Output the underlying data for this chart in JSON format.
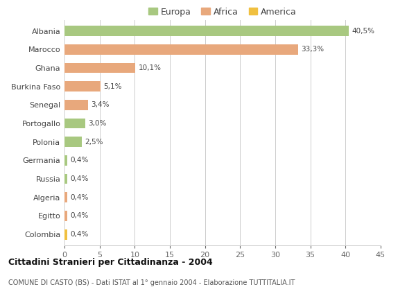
{
  "countries": [
    "Albania",
    "Marocco",
    "Ghana",
    "Burkina Faso",
    "Senegal",
    "Portogallo",
    "Polonia",
    "Germania",
    "Russia",
    "Algeria",
    "Egitto",
    "Colombia"
  ],
  "values": [
    40.5,
    33.3,
    10.1,
    5.1,
    3.4,
    3.0,
    2.5,
    0.4,
    0.4,
    0.4,
    0.4,
    0.4
  ],
  "labels": [
    "40,5%",
    "33,3%",
    "10,1%",
    "5,1%",
    "3,4%",
    "3,0%",
    "2,5%",
    "0,4%",
    "0,4%",
    "0,4%",
    "0,4%",
    "0,4%"
  ],
  "colors": [
    "#a8c880",
    "#e8a87c",
    "#e8a87c",
    "#e8a87c",
    "#e8a87c",
    "#a8c880",
    "#a8c880",
    "#a8c880",
    "#a8c880",
    "#e8a87c",
    "#e8a87c",
    "#f0c040"
  ],
  "legend_labels": [
    "Europa",
    "Africa",
    "America"
  ],
  "legend_colors": [
    "#a8c880",
    "#e8a87c",
    "#f0c040"
  ],
  "title": "Cittadini Stranieri per Cittadinanza - 2004",
  "subtitle": "COMUNE DI CASTO (BS) - Dati ISTAT al 1° gennaio 2004 - Elaborazione TUTTITALIA.IT",
  "xlim": [
    0,
    45
  ],
  "xticks": [
    0,
    5,
    10,
    15,
    20,
    25,
    30,
    35,
    40,
    45
  ],
  "background_color": "#ffffff",
  "grid_color": "#cccccc"
}
